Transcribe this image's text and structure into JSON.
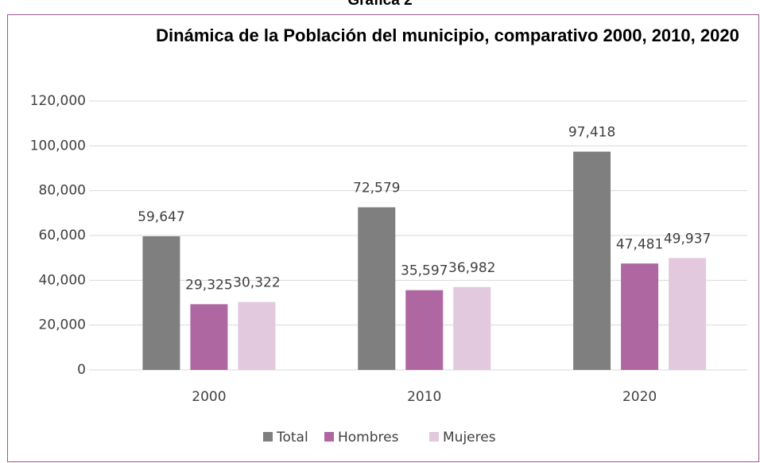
{
  "header": "Gráfica 2",
  "chart_data": {
    "type": "bar",
    "title": "Dinámica de la Población del municipio, comparativo 2000, 2010, 2020",
    "categories": [
      "2000",
      "2010",
      "2020"
    ],
    "series": [
      {
        "name": "Total",
        "color": "#7f7f7f",
        "values": [
          59647,
          72579,
          97418
        ],
        "value_labels": [
          "59,647",
          "72,579",
          "97,418"
        ]
      },
      {
        "name": "Hombres",
        "color": "#ae67a1",
        "values": [
          29325,
          35597,
          47481
        ],
        "value_labels": [
          "29,325",
          "35,597",
          "47,481"
        ]
      },
      {
        "name": "Mujeres",
        "color": "#e2c9dd",
        "values": [
          30322,
          36982,
          49937
        ],
        "value_labels": [
          "30,322",
          "36,982",
          "49,937"
        ]
      }
    ],
    "ylim": [
      0,
      120000
    ],
    "yticks": [
      0,
      {
        "value": 20000,
        "label": "20,000"
      },
      {
        "value": 40000,
        "label": "40,000"
      },
      {
        "value": 60000,
        "label": "60,000"
      },
      {
        "value": 80000,
        "label": "80,000"
      },
      {
        "value": 100000,
        "label": "100,000"
      },
      {
        "value": 120000,
        "label": "120,000"
      }
    ],
    "grid": true,
    "legend": "bottom"
  }
}
